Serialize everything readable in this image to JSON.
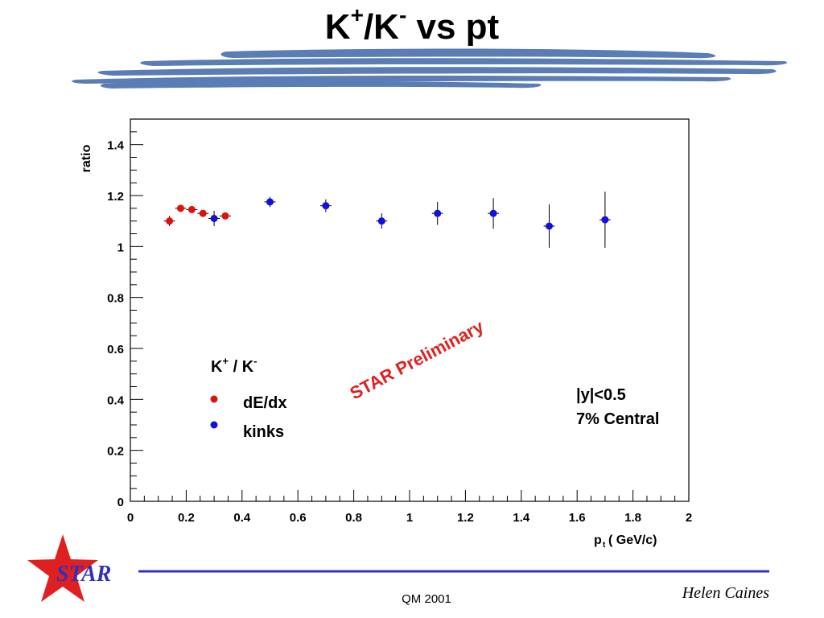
{
  "slide": {
    "title_main": "K",
    "title_sup1": "+",
    "title_mid": "/K",
    "title_sup2": "-",
    "title_end": " vs pt",
    "footer_center": "QM 2001",
    "footer_author": "Helen Caines",
    "logo_text": "STAR",
    "colors": {
      "brush": "#5a7db5",
      "logo_star": "#e02020",
      "logo_line": "#3030c0",
      "logo_text": "#3030c0"
    }
  },
  "chart_data": {
    "type": "scatter",
    "xlabel": "p_t ( GeV/c)",
    "ylabel": "ratio",
    "xlim": [
      0,
      2
    ],
    "ylim": [
      0,
      1.5
    ],
    "x_ticks": [
      0,
      0.2,
      0.4,
      0.6,
      0.8,
      1,
      1.2,
      1.4,
      1.6,
      1.8,
      2
    ],
    "x_tick_labels": [
      "0",
      "0.2",
      "0.4",
      "0.6",
      "0.8",
      "1",
      "1.2",
      "1.4",
      "1.6",
      "1.8",
      "2"
    ],
    "y_ticks": [
      0,
      0.2,
      0.4,
      0.6,
      0.8,
      1,
      1.2,
      1.4
    ],
    "y_tick_labels": [
      "0",
      "0.2",
      "0.4",
      "0.6",
      "0.8",
      "1",
      "1.2",
      "1.4"
    ],
    "grid": false,
    "legend_title_base1": "K",
    "legend_title_sup1": "+",
    "legend_title_mid": " / K",
    "legend_title_sup2": "-",
    "legend_position": "middle-left",
    "series": [
      {
        "name": "dE/dx",
        "color": "#e01010",
        "points": [
          {
            "x": 0.14,
            "y": 1.1,
            "yerr": 0.02,
            "xerr": 0.02
          },
          {
            "x": 0.18,
            "y": 1.15,
            "yerr": 0.008,
            "xerr": 0.02
          },
          {
            "x": 0.22,
            "y": 1.145,
            "yerr": 0.008,
            "xerr": 0.02
          },
          {
            "x": 0.26,
            "y": 1.13,
            "yerr": 0.008,
            "xerr": 0.02
          },
          {
            "x": 0.34,
            "y": 1.12,
            "yerr": 0.008,
            "xerr": 0.02
          }
        ]
      },
      {
        "name": "kinks",
        "color": "#1010e0",
        "points": [
          {
            "x": 0.3,
            "y": 1.11,
            "yerr": 0.03,
            "xerr": 0.02
          },
          {
            "x": 0.5,
            "y": 1.175,
            "yerr": 0.02,
            "xerr": 0.02
          },
          {
            "x": 0.7,
            "y": 1.16,
            "yerr": 0.025,
            "xerr": 0.02
          },
          {
            "x": 0.9,
            "y": 1.1,
            "yerr": 0.03,
            "xerr": 0.02
          },
          {
            "x": 1.1,
            "y": 1.13,
            "yerr": 0.045,
            "xerr": 0.02
          },
          {
            "x": 1.3,
            "y": 1.13,
            "yerr": 0.06,
            "xerr": 0.02
          },
          {
            "x": 1.5,
            "y": 1.08,
            "yerr": 0.085,
            "xerr": 0.02
          },
          {
            "x": 1.7,
            "y": 1.105,
            "yerr": 0.11,
            "xerr": 0.02
          }
        ]
      }
    ],
    "annotations": {
      "preliminary": "STAR Preliminary",
      "preliminary_color": "#e02020",
      "info_line1": "|y|<0.5",
      "info_line2": "7% Central"
    }
  }
}
